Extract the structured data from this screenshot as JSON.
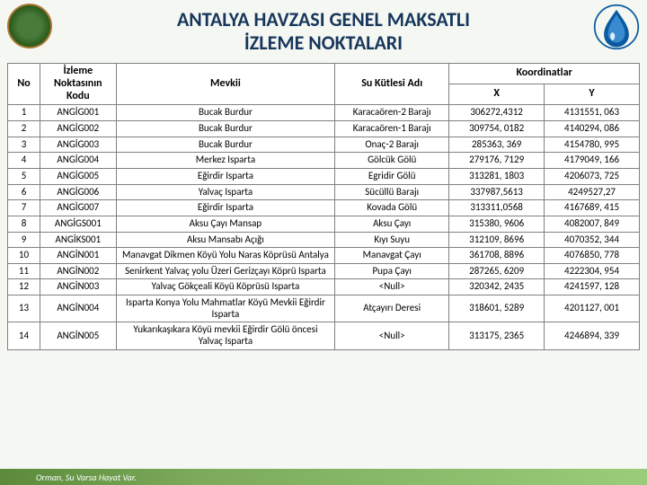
{
  "title_line1": "ANTALYA  HAVZASI GENEL MAKSATLI",
  "title_line2": "İZLEME NOKTALARI",
  "footer_text": "Orman, Su Varsa Hayat Var.",
  "table": {
    "headers": {
      "no": "No",
      "code": "İzleme Noktasının Kodu",
      "mevkii": "Mevkii",
      "su": "Su Kütlesi Adı",
      "koord": "Koordinatlar",
      "x": "X",
      "y": "Y"
    },
    "rows": [
      {
        "no": "1",
        "code": "ANGİG001",
        "mevkii": "Bucak Burdur",
        "su": "Karacaören-2 Barajı",
        "x": "306272,4312",
        "y": "4131551, 063"
      },
      {
        "no": "2",
        "code": "ANGİG002",
        "mevkii": "Bucak Burdur",
        "su": "Karacaören-1 Barajı",
        "x": "309754, 0182",
        "y": "4140294, 086"
      },
      {
        "no": "3",
        "code": "ANGİG003",
        "mevkii": "Bucak Burdur",
        "su": "Onaç-2 Barajı",
        "x": "285363, 369",
        "y": "4154780, 995"
      },
      {
        "no": "4",
        "code": "ANGİG004",
        "mevkii": "Merkez Isparta",
        "su": "Gölcük Gölü",
        "x": "279176, 7129",
        "y": "4179049, 166"
      },
      {
        "no": "5",
        "code": "ANGİG005",
        "mevkii": "Eğirdir Isparta",
        "su": "Egridir Gölü",
        "x": "313281, 1803",
        "y": "4206073, 725"
      },
      {
        "no": "6",
        "code": "ANGİG006",
        "mevkii": "Yalvaç Isparta",
        "su": "Sücüllü Barajı",
        "x": "337987,5613",
        "y": "4249527,27"
      },
      {
        "no": "7",
        "code": "ANGİG007",
        "mevkii": "Eğirdir Isparta",
        "su": "Kovada Gölü",
        "x": "313311,0568",
        "y": "4167689, 415"
      },
      {
        "no": "8",
        "code": "ANGİGS001",
        "mevkii": "Aksu Çayı Mansap",
        "su": "Aksu Çayı",
        "x": "315380, 9606",
        "y": "4082007, 849"
      },
      {
        "no": "9",
        "code": "ANGİKS001",
        "mevkii": "Aksu Mansabı Açığı",
        "su": "Kıyı Suyu",
        "x": "312109, 8696",
        "y": "4070352, 344"
      },
      {
        "no": "10",
        "code": "ANGİN001",
        "mevkii": "Manavgat Dikmen Köyü Yolu Naras Köprüsü Antalya",
        "su": "Manavgat Çayı",
        "x": "361708, 8896",
        "y": "4076850, 778"
      },
      {
        "no": "11",
        "code": "ANGİN002",
        "mevkii": "Senirkent Yalvaç yolu Üzeri Gerizçayı Köprü Isparta",
        "su": "Pupa Çayı",
        "x": "287265, 6209",
        "y": "4222304, 954"
      },
      {
        "no": "12",
        "code": "ANGİN003",
        "mevkii": "Yalvaç Gökçeali Köyü Köprüsü Isparta",
        "su": "<Null>",
        "x": "320342, 2435",
        "y": "4241597, 128"
      },
      {
        "no": "13",
        "code": "ANGİN004",
        "mevkii": "Isparta Konya Yolu Mahmatlar Köyü Mevkii Eğirdir Isparta",
        "su": "Atçayırı Deresi",
        "x": "318601, 5289",
        "y": "4201127, 001"
      },
      {
        "no": "14",
        "code": "ANGİN005",
        "mevkii": "Yukarıkaşıkara Köyü mevkii Eğirdir Gölü öncesi Yalvaç Isparta",
        "su": "<Null>",
        "x": "313175, 2365",
        "y": "4246894, 339"
      }
    ]
  },
  "colors": {
    "title": "#16365c",
    "border": "#808080",
    "bg": "#f5f7f2",
    "footer_start": "#5a8a3a",
    "footer_end": "#9acc7a",
    "logo_blue": "#0a5aa0"
  }
}
